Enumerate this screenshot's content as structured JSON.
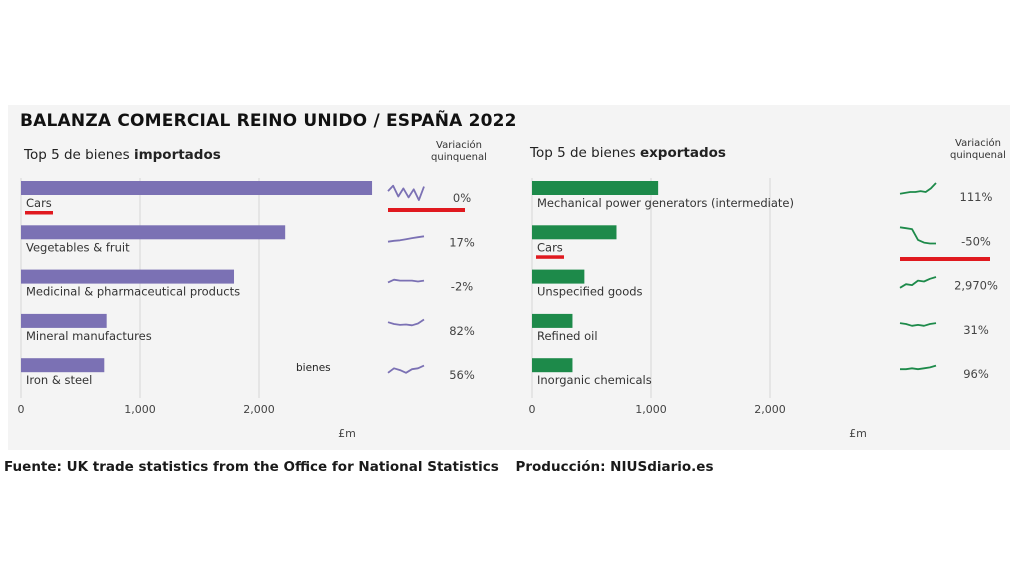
{
  "title": "BALANZA COMERCIAL REINO UNIDO / ESPAÑA 2022",
  "footer": {
    "source": "Fuente: UK trade statistics from the Office for National Statistics",
    "production": "Producción: NIUSdiario.es"
  },
  "colors": {
    "imports": "#7b71b4",
    "exports": "#1d8a4a",
    "highlight": "#e0191f",
    "grid": "#d6d6d6"
  },
  "chart_data": [
    {
      "type": "bar",
      "orientation": "horizontal",
      "subtitle_prefix": "Top 5 de bienes ",
      "subtitle_bold": "importados",
      "variation_header": [
        "Variación",
        "quinquenal"
      ],
      "categories": [
        "Cars",
        "Vegetables & fruit",
        "Medicinal & pharmaceutical products",
        "Mineral manufactures",
        "Iron & steel"
      ],
      "values": [
        2950,
        2220,
        1790,
        720,
        700
      ],
      "variation": [
        "0%",
        "17%",
        "-2%",
        "82%",
        "56%"
      ],
      "highlight": "Cars",
      "xticks": [
        "0",
        "1,000",
        "2,000"
      ],
      "xlim": [
        0,
        3000
      ],
      "xlabel": "£m",
      "stray_label": "bienes",
      "sparklines": [
        [
          0.45,
          0.15,
          0.75,
          0.3,
          0.8,
          0.35,
          0.95,
          0.2
        ],
        [
          0.8,
          0.75,
          0.72,
          0.66,
          0.6,
          0.55,
          0.5
        ],
        [
          0.6,
          0.45,
          0.5,
          0.5,
          0.5,
          0.55,
          0.5
        ],
        [
          0.35,
          0.45,
          0.5,
          0.48,
          0.52,
          0.42,
          0.2
        ],
        [
          0.7,
          0.45,
          0.55,
          0.7,
          0.5,
          0.45,
          0.3
        ]
      ]
    },
    {
      "type": "bar",
      "orientation": "horizontal",
      "subtitle_prefix": "Top 5 de bienes ",
      "subtitle_bold": "exportados",
      "variation_header": [
        "Variación",
        "quinquenal"
      ],
      "categories": [
        "Mechanical power generators (intermediate)",
        "Cars",
        "Unspecified goods",
        "Refined oil",
        "Inorganic chemicals"
      ],
      "values": [
        1060,
        710,
        440,
        340,
        340
      ],
      "variation": [
        "111%",
        "-50%",
        "2,970%",
        "31%",
        "96%"
      ],
      "highlight": "Cars",
      "xticks": [
        "0",
        "1,000",
        "2,000"
      ],
      "xlim": [
        0,
        3000
      ],
      "xlabel": "£m",
      "sparklines": [
        [
          0.6,
          0.55,
          0.5,
          0.5,
          0.45,
          0.5,
          0.3,
          0.0
        ],
        [
          0.0,
          0.05,
          0.1,
          0.7,
          0.85,
          0.9,
          0.9
        ],
        [
          0.9,
          0.7,
          0.75,
          0.5,
          0.55,
          0.4,
          0.3
        ],
        [
          0.4,
          0.45,
          0.55,
          0.5,
          0.55,
          0.45,
          0.4
        ],
        [
          0.5,
          0.5,
          0.45,
          0.5,
          0.45,
          0.4,
          0.3
        ]
      ]
    }
  ]
}
